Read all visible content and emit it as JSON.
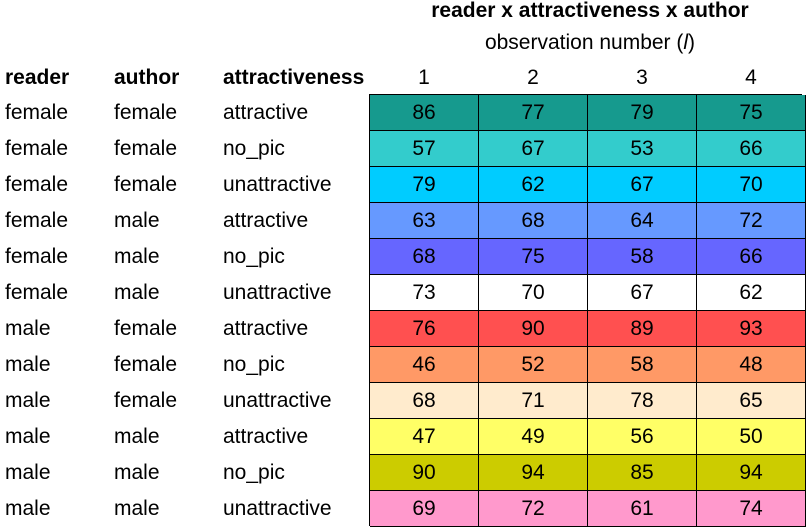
{
  "title": {
    "line1": "reader x attractiveness x author",
    "line2_prefix": "observation number (",
    "line2_var": "l",
    "line2_suffix": ")"
  },
  "headers": {
    "reader": "reader",
    "author": "author",
    "attractiveness": "attractiveness",
    "obs": [
      "1",
      "2",
      "3",
      "4"
    ]
  },
  "rows": [
    {
      "reader": "female",
      "author": "female",
      "attractiveness": "attractive",
      "values": [
        "86",
        "77",
        "79",
        "75"
      ],
      "color": "#169A8E"
    },
    {
      "reader": "female",
      "author": "female",
      "attractiveness": "no_pic",
      "values": [
        "57",
        "67",
        "53",
        "66"
      ],
      "color": "#33CCCC"
    },
    {
      "reader": "female",
      "author": "female",
      "attractiveness": "unattractive",
      "values": [
        "79",
        "62",
        "67",
        "70"
      ],
      "color": "#00CCFF"
    },
    {
      "reader": "female",
      "author": "male",
      "attractiveness": "attractive",
      "values": [
        "63",
        "68",
        "64",
        "72"
      ],
      "color": "#6699FF"
    },
    {
      "reader": "female",
      "author": "male",
      "attractiveness": "no_pic",
      "values": [
        "68",
        "75",
        "58",
        "66"
      ],
      "color": "#6666FF"
    },
    {
      "reader": "female",
      "author": "male",
      "attractiveness": "unattractive",
      "values": [
        "73",
        "70",
        "67",
        "62"
      ],
      "color": "#FFFFFF"
    },
    {
      "reader": "male",
      "author": "female",
      "attractiveness": "attractive",
      "values": [
        "76",
        "90",
        "89",
        "93"
      ],
      "color": "#FF5050"
    },
    {
      "reader": "male",
      "author": "female",
      "attractiveness": "no_pic",
      "values": [
        "46",
        "52",
        "58",
        "48"
      ],
      "color": "#FF9966"
    },
    {
      "reader": "male",
      "author": "female",
      "attractiveness": "unattractive",
      "values": [
        "68",
        "71",
        "78",
        "65"
      ],
      "color": "#FFEBCD"
    },
    {
      "reader": "male",
      "author": "male",
      "attractiveness": "attractive",
      "values": [
        "47",
        "49",
        "56",
        "50"
      ],
      "color": "#FFFF66"
    },
    {
      "reader": "male",
      "author": "male",
      "attractiveness": "no_pic",
      "values": [
        "90",
        "94",
        "85",
        "94"
      ],
      "color": "#CCCC00"
    },
    {
      "reader": "male",
      "author": "male",
      "attractiveness": "unattractive",
      "values": [
        "69",
        "72",
        "61",
        "74"
      ],
      "color": "#FF99CC"
    }
  ]
}
